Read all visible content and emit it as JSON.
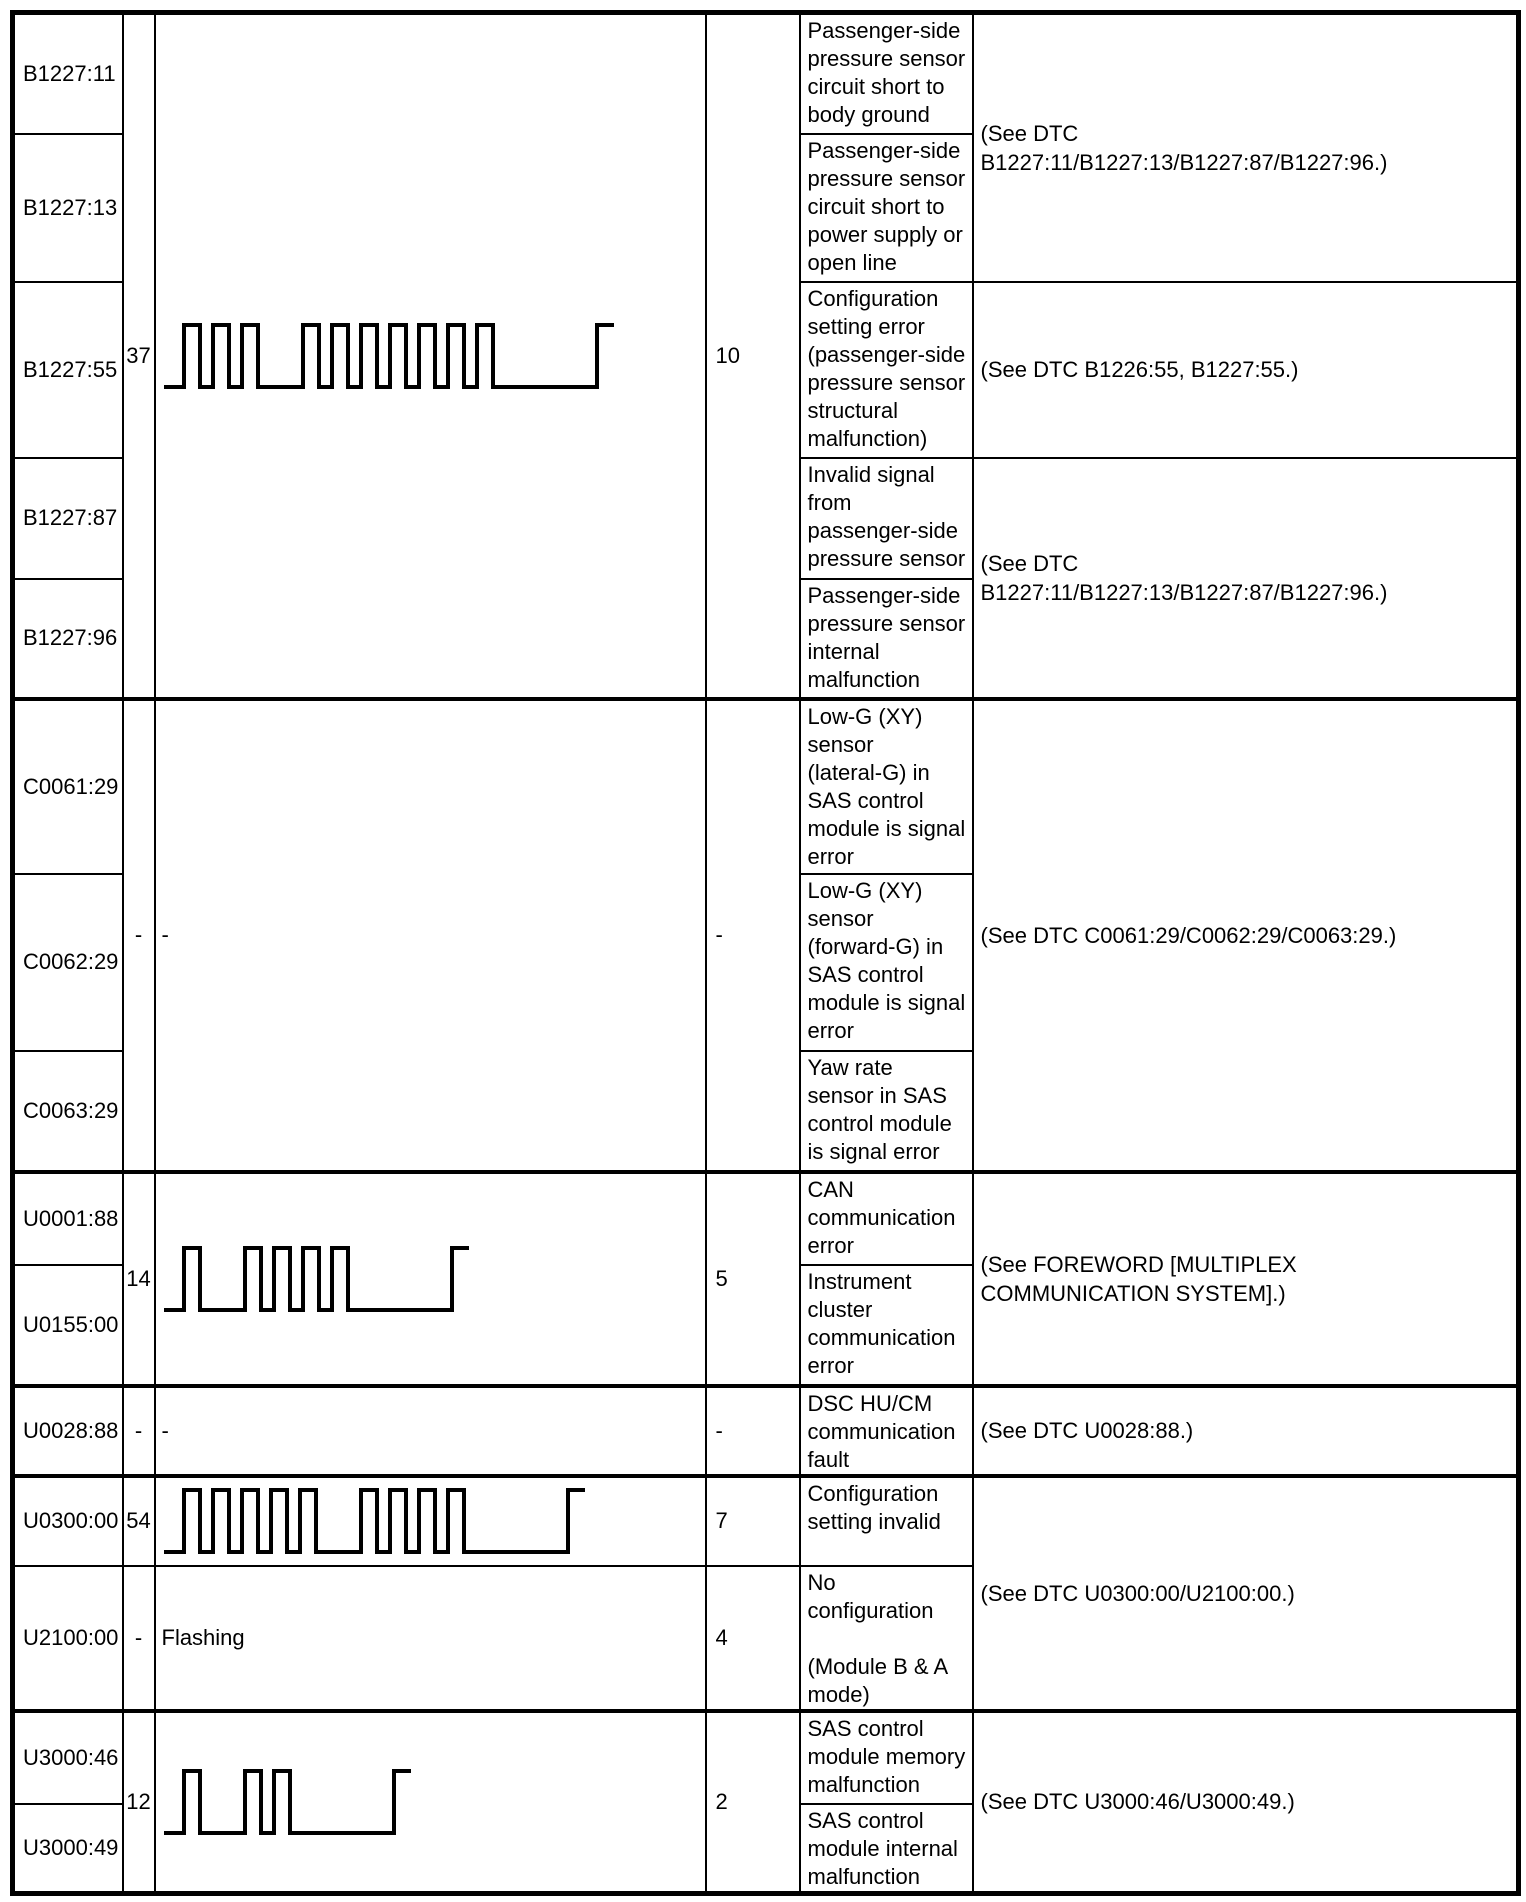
{
  "colors": {
    "border": "#000000",
    "background": "#ffffff",
    "text": "#000000",
    "waveform_line": "#000000"
  },
  "table": {
    "rows": [
      {
        "dtc": "B1227:11",
        "description": "Passenger-side\npressure sensor\ncircuit short to\nbody ground"
      },
      {
        "dtc": "B1227:13",
        "description": "Passenger-side\npressure sensor\ncircuit short to\npower supply or\nopen line"
      },
      {
        "dtc": "B1227:55",
        "description": "Configuration\nsetting error\n(passenger-side\npressure sensor\nstructural\nmalfunction)"
      },
      {
        "dtc": "B1227:87",
        "description": "Invalid signal\nfrom\npassenger-side\npressure sensor"
      },
      {
        "dtc": "B1227:96",
        "description": "Passenger-side\npressure sensor\ninternal\nmalfunction"
      },
      {
        "dtc": "C0061:29",
        "description": "Low-G (XY)\nsensor\n(lateral-G) in\nSAS control\nmodule is signal\nerror"
      },
      {
        "dtc": "C0062:29",
        "description": "Low-G (XY)\nsensor\n(forward-G) in\nSAS control\nmodule is signal\nerror"
      },
      {
        "dtc": "C0063:29",
        "description": "Yaw rate\nsensor in SAS\ncontrol module\nis signal error"
      },
      {
        "dtc": "U0001:88",
        "description": "CAN\ncommunication\nerror"
      },
      {
        "dtc": "U0155:00",
        "description": "Instrument\ncluster\ncommunication\nerror"
      },
      {
        "dtc": "U0028:88",
        "description": "DSC HU/CM\ncommunication\nfault"
      },
      {
        "dtc": "U0300:00",
        "description": "Configuration\nsetting invalid"
      },
      {
        "dtc": "U2100:00",
        "description": "No\nconfiguration\n\n(Module B & A\nmode)"
      },
      {
        "dtc": "U3000:46",
        "description": "SAS control\nmodule memory\nmalfunction"
      },
      {
        "dtc": "U3000:49",
        "description": "SAS control\nmodule internal\nmalfunction"
      }
    ],
    "merged_cells": {
      "b_group": {
        "flash_count": "37",
        "flash_code": "10"
      },
      "c_group": {
        "flash_count": "-",
        "flash_pattern": "-",
        "flash_code": "-"
      },
      "u_comm": {
        "flash_count": "14",
        "flash_code": "5"
      },
      "u0028": {
        "flash_count": "-",
        "flash_pattern": "-",
        "flash_code": "-"
      },
      "u0300": {
        "flash_count": "54",
        "flash_code": "7"
      },
      "u2100": {
        "flash_count": "-",
        "flash_pattern": "Flashing",
        "flash_code": "4"
      },
      "u3000": {
        "flash_count": "12",
        "flash_code": "2"
      }
    },
    "references": {
      "b_11_13": "(See DTC\nB1227:11/B1227:13/B1227:87/B1227:96.)",
      "b_55": "(See DTC B1226:55, B1227:55.)",
      "b_87_96": "(See DTC\nB1227:11/B1227:13/B1227:87/B1227:96.)",
      "c_group": "(See DTC C0061:29/C0062:29/C0063:29.)",
      "u_comm": "(See FOREWORD [MULTIPLEX\nCOMMUNICATION SYSTEM].)",
      "u0028": "(See DTC U0028:88.)",
      "u_config": "(See DTC U0300:00/U2100:00.)",
      "u3000": "(See DTC U3000:46/U3000:49.)"
    },
    "waveforms": {
      "b_group": {
        "groups": [
          3,
          7
        ]
      },
      "u_comm": {
        "groups": [
          1,
          4
        ]
      },
      "u0300": {
        "groups": [
          5,
          4
        ]
      },
      "u3000": {
        "groups": [
          1,
          2
        ]
      }
    }
  }
}
